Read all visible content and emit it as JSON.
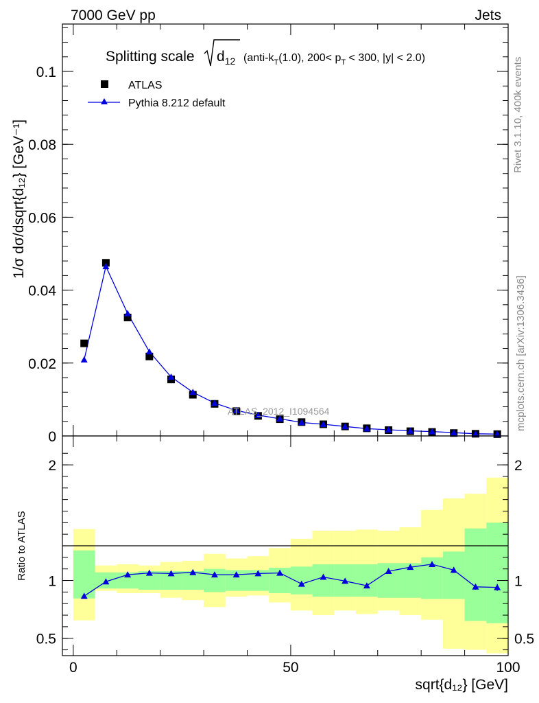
{
  "header": {
    "left": "7000 GeV pp",
    "right": "Jets"
  },
  "side_labels": {
    "rivet": "Rivet 3.1.10,  400k events",
    "mcplots": "mcplots.cern.ch [arXiv:1306.3436]"
  },
  "title": {
    "prefix": "Splitting scale ",
    "var": "d",
    "var_sub": "12",
    "cuts_a": " (anti-k",
    "cuts_a_sub": "T",
    "cuts_b": "(1.0), 200< p",
    "cuts_b_sub": "T",
    "cuts_c": " < 300, |y| < 2.0)"
  },
  "watermark": "ATLAS_2012_I1094564",
  "legend": {
    "data_label": "ATLAS",
    "mc_label": "Pythia 8.212 default"
  },
  "colors": {
    "data": "#000000",
    "mc": "#0000dd",
    "band_inner": "#99ff99",
    "band_outer": "#ffff99"
  },
  "chart_data": [
    {
      "type": "scatter",
      "panel": "main",
      "ylabel": "1/σ dσ/dsqrt{d₁₂} [GeV⁻¹]",
      "ylim": [
        0,
        0.113
      ],
      "xlim": [
        -2.5,
        100
      ],
      "yticks": [
        {
          "v": 0,
          "label": "0"
        },
        {
          "v": 0.02,
          "label": "0.02"
        },
        {
          "v": 0.04,
          "label": "0.04"
        },
        {
          "v": 0.06,
          "label": "0.06"
        },
        {
          "v": 0.08,
          "label": "0.08"
        },
        {
          "v": 0.1,
          "label": "0.1"
        }
      ],
      "x": [
        2.5,
        7.5,
        12.5,
        17.5,
        22.5,
        27.5,
        32.5,
        37.5,
        42.5,
        47.5,
        52.5,
        57.5,
        62.5,
        67.5,
        72.5,
        77.5,
        82.5,
        87.5,
        92.5,
        97.5
      ],
      "series": [
        {
          "name": "ATLAS",
          "values": [
            0.0254,
            0.0475,
            0.0325,
            0.0218,
            0.0155,
            0.0113,
            0.0088,
            0.0068,
            0.0055,
            0.0046,
            0.0038,
            0.0032,
            0.0026,
            0.0021,
            0.0016,
            0.0013,
            0.0011,
            0.0008,
            0.0006,
            0.0005
          ]
        },
        {
          "name": "Pythia 8.212 default",
          "values": [
            0.0209,
            0.0465,
            0.0336,
            0.0231,
            0.0162,
            0.012,
            0.009,
            0.007,
            0.0057,
            0.0047,
            0.0037,
            0.0032,
            0.0026,
            0.002,
            0.0017,
            0.0014,
            0.0012,
            0.0009,
            0.0006,
            0.0005
          ]
        }
      ]
    },
    {
      "type": "line",
      "panel": "ratio",
      "ylabel": "Ratio to ATLAS",
      "xlabel": "sqrt{d₁₂} [GeV]",
      "ylim": [
        0.35,
        2.25
      ],
      "xlim": [
        -2.5,
        100
      ],
      "xticks": [
        {
          "v": 0,
          "label": "0"
        },
        {
          "v": 50,
          "label": "50"
        },
        {
          "v": 100,
          "label": "100"
        }
      ],
      "yticks": [
        {
          "v": 0.5,
          "label": "0.5"
        },
        {
          "v": 1,
          "label": "1"
        },
        {
          "v": 2,
          "label": "2"
        }
      ],
      "x": [
        2.5,
        7.5,
        12.5,
        17.5,
        22.5,
        27.5,
        32.5,
        37.5,
        42.5,
        47.5,
        52.5,
        57.5,
        62.5,
        67.5,
        72.5,
        77.5,
        82.5,
        87.5,
        92.5,
        97.5
      ],
      "bin_edges": [
        0,
        5,
        10,
        15,
        20,
        25,
        30,
        35,
        40,
        45,
        50,
        55,
        60,
        65,
        70,
        75,
        80,
        85,
        90,
        95,
        100
      ],
      "series": [
        {
          "name": "Pythia 8.212 default / ATLAS",
          "values": [
            0.865,
            0.99,
            1.05,
            1.065,
            1.06,
            1.07,
            1.05,
            1.05,
            1.06,
            1.065,
            0.97,
            1.03,
            0.995,
            0.955,
            1.08,
            1.115,
            1.14,
            1.09,
            0.945,
            0.94
          ],
          "errors": [
            0.01,
            0.01,
            0.01,
            0.01,
            0.01,
            0.01,
            0.01,
            0.01,
            0.01,
            0.01,
            0.012,
            0.012,
            0.012,
            0.014,
            0.015,
            0.018,
            0.02,
            0.025,
            0.025,
            0.03
          ]
        }
      ],
      "band_inner": {
        "lo": [
          0.845,
          0.93,
          0.93,
          0.92,
          0.92,
          0.92,
          0.9,
          0.91,
          0.91,
          0.89,
          0.88,
          0.86,
          0.86,
          0.86,
          0.85,
          0.85,
          0.84,
          0.84,
          0.65,
          0.63
        ],
        "hi": [
          1.26,
          1.07,
          1.07,
          1.08,
          1.08,
          1.08,
          1.1,
          1.09,
          1.09,
          1.11,
          1.12,
          1.14,
          1.14,
          1.14,
          1.15,
          1.15,
          1.2,
          1.25,
          1.45,
          1.5
        ]
      },
      "band_outer": {
        "lo": [
          0.655,
          0.91,
          0.89,
          0.89,
          0.85,
          0.83,
          0.77,
          0.86,
          0.87,
          0.81,
          0.74,
          0.7,
          0.74,
          0.71,
          0.74,
          0.7,
          0.66,
          0.41,
          0.4,
          0.37
        ],
        "hi": [
          1.445,
          1.13,
          1.14,
          1.13,
          1.16,
          1.17,
          1.23,
          1.19,
          1.21,
          1.28,
          1.36,
          1.43,
          1.43,
          1.44,
          1.43,
          1.46,
          1.61,
          1.71,
          1.75,
          1.89
        ]
      }
    }
  ]
}
